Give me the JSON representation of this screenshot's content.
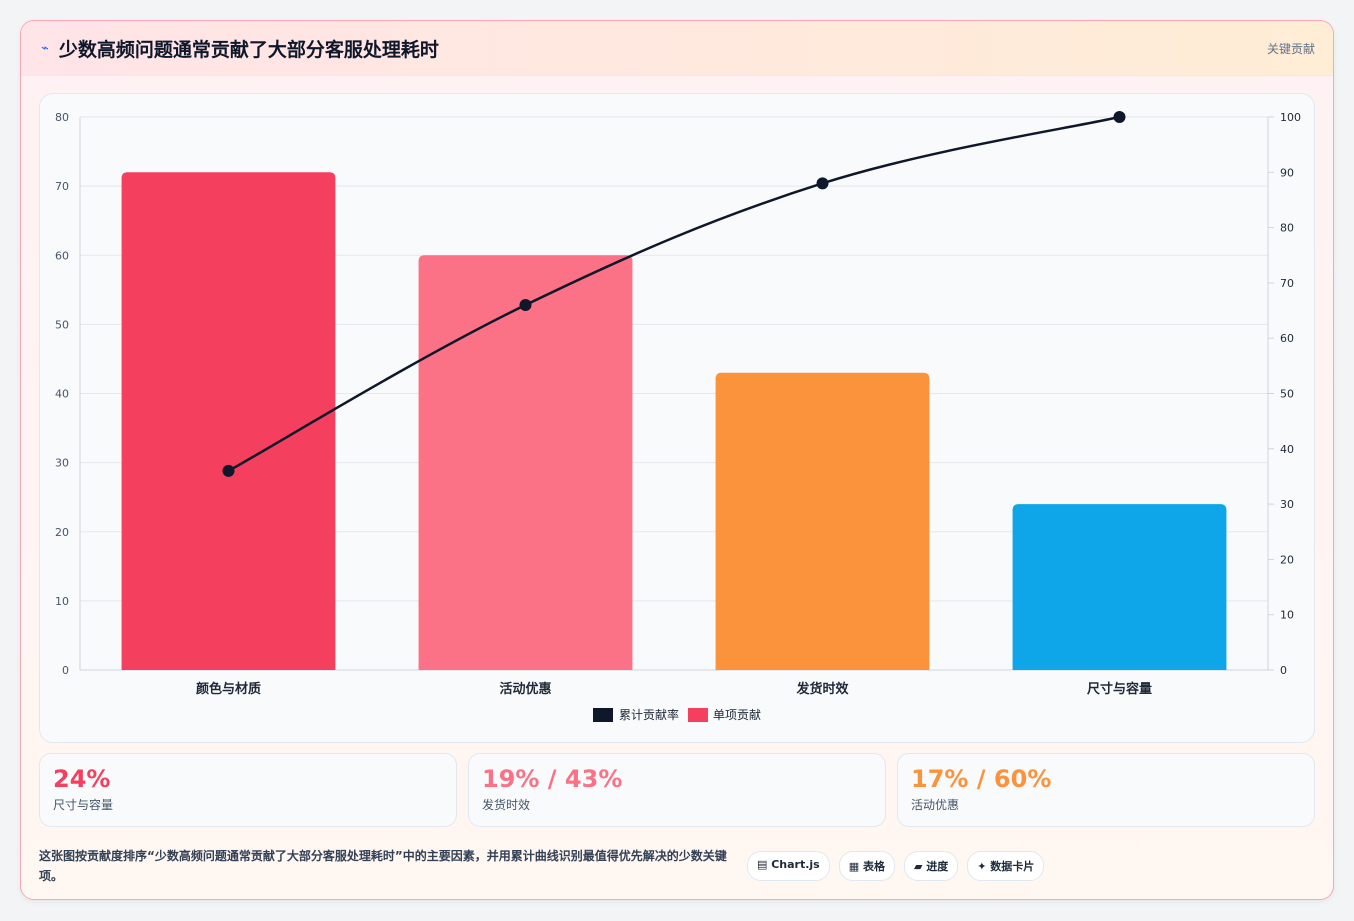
{
  "header": {
    "icon": "trend-icon",
    "title": "少数高频问题通常贡献了大部分客服处理耗时",
    "tag": "关键贡献"
  },
  "chart_data": {
    "type": "bar",
    "categories": [
      "颜色与材质",
      "活动优惠",
      "发货时效",
      "尺寸与容量"
    ],
    "series": [
      {
        "name": "累计贡献率",
        "type": "line",
        "axis": "right",
        "color": "#0f172a",
        "values": [
          36,
          66,
          88,
          100
        ]
      },
      {
        "name": "单项贡献",
        "type": "bar",
        "axis": "left",
        "colors": [
          "#f43f5e",
          "#fb7185",
          "#fb923c",
          "#0ea5e9"
        ],
        "values": [
          72,
          60,
          43,
          24
        ]
      }
    ],
    "ylim": [
      0,
      80
    ],
    "yticks": [
      0,
      10,
      20,
      30,
      40,
      50,
      60,
      70,
      80
    ],
    "y2lim": [
      0,
      100
    ],
    "y2ticks": [
      0,
      10,
      20,
      30,
      40,
      50,
      60,
      70,
      80,
      90,
      100
    ],
    "grid": true,
    "legend": "bottom"
  },
  "stats": [
    {
      "value": "24%",
      "label": "尺寸与容量",
      "color": "#f43f5e"
    },
    {
      "value": "19% / 43%",
      "label": "发货时效",
      "color": "#fb7185"
    },
    {
      "value": "17% / 60%",
      "label": "活动优惠",
      "color": "#fb923c"
    }
  ],
  "footer": {
    "description": "这张图按贡献度排序“少数高频问题通常贡献了大部分客服处理耗时”中的主要因素，并用累计曲线识别最值得优先解决的少数关键项。",
    "chips": [
      "▤ Chart.js",
      "▦ 表格",
      "▰ 进度",
      "✦ 数据卡片"
    ]
  }
}
